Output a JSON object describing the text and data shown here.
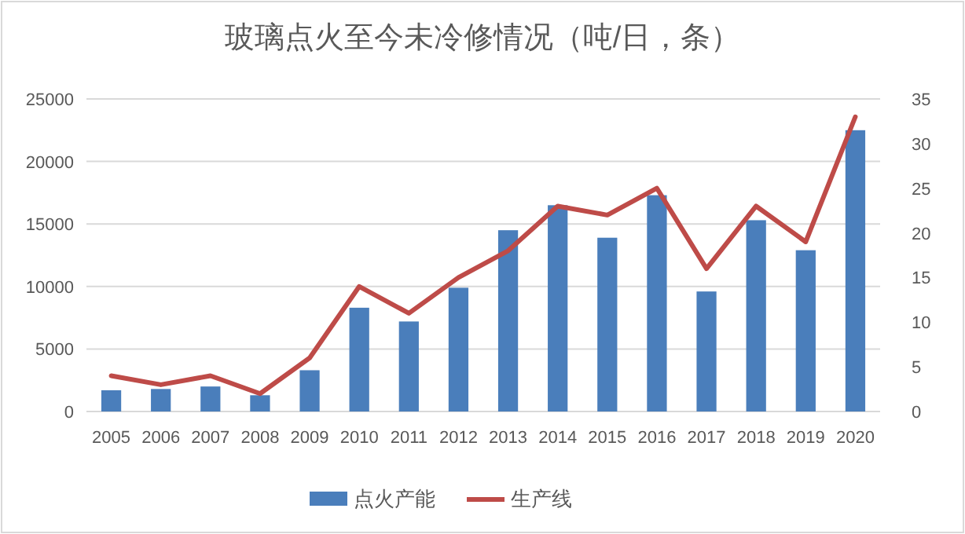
{
  "chart_data": {
    "type": "bar",
    "title": "玻璃点火至今未冷修情况（吨/日，条）",
    "categories": [
      "2005",
      "2006",
      "2007",
      "2008",
      "2009",
      "2010",
      "2011",
      "2012",
      "2013",
      "2014",
      "2015",
      "2016",
      "2017",
      "2018",
      "2019",
      "2020"
    ],
    "series": [
      {
        "name": "点火产能",
        "color": "#4a7ebb",
        "values": [
          1700,
          1800,
          2000,
          1300,
          3300,
          8300,
          7200,
          9900,
          14500,
          16500,
          13900,
          17300,
          9600,
          15300,
          12900,
          22500
        ]
      },
      {
        "name": "生产线",
        "type": "line",
        "axis": "y2",
        "color": "#be4b48",
        "values": [
          4,
          3,
          4,
          2,
          6,
          14,
          11,
          15,
          18,
          23,
          22,
          25,
          16,
          23,
          19,
          33
        ]
      }
    ],
    "ylim": [
      0,
      25000
    ],
    "yticks": [
      0,
      5000,
      10000,
      15000,
      20000,
      25000
    ],
    "y2lim": [
      0,
      35
    ],
    "y2ticks": [
      0,
      5,
      10,
      15,
      20,
      25,
      30,
      35
    ],
    "grid": "y",
    "legend": "bottom"
  }
}
